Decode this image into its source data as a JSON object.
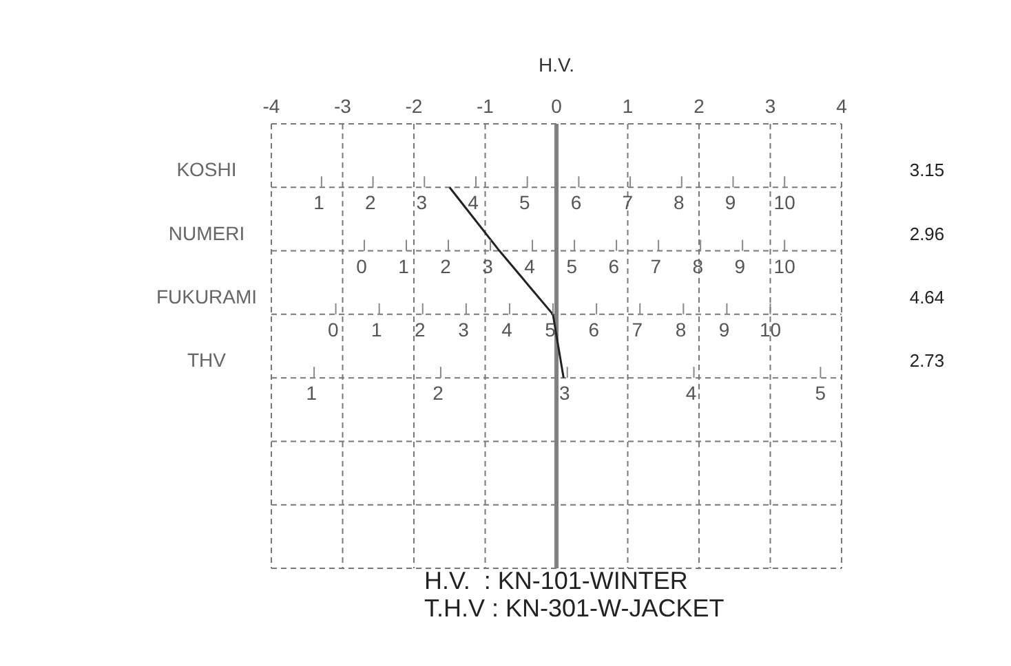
{
  "chart_data": {
    "type": "line",
    "orientation": "horizontal",
    "xlabel": "H.V.",
    "categories": [
      "KOSHI",
      "NUMERI",
      "FUKURAMI",
      "THV"
    ],
    "series": [
      {
        "color": "#222222",
        "values": [
          -1.5,
          -0.8,
          -0.05,
          0.1
        ]
      }
    ],
    "xlim": [
      -4,
      4
    ],
    "xticks": [
      -4,
      -3,
      -2,
      -1,
      0,
      1,
      2,
      3,
      4
    ],
    "grid": true,
    "marker": "none",
    "line_style": "solid",
    "ref_lines": [
      {
        "axis": "x",
        "value": 0,
        "color": "#808080"
      }
    ],
    "annotations": [
      "1 2 3 4 5 6 7 8 9 10",
      "0 1 2 3 4 5 6 7 8 9 10",
      "0 1 2 3 4 5 6 7 8 9 10",
      "1 2 3 4 5",
      "3.15",
      "2.96",
      "4.64",
      "2.73",
      "H.V.  : KN-101-WINTER",
      "T.H.V : KN-301-W-JACKET"
    ]
  }
}
